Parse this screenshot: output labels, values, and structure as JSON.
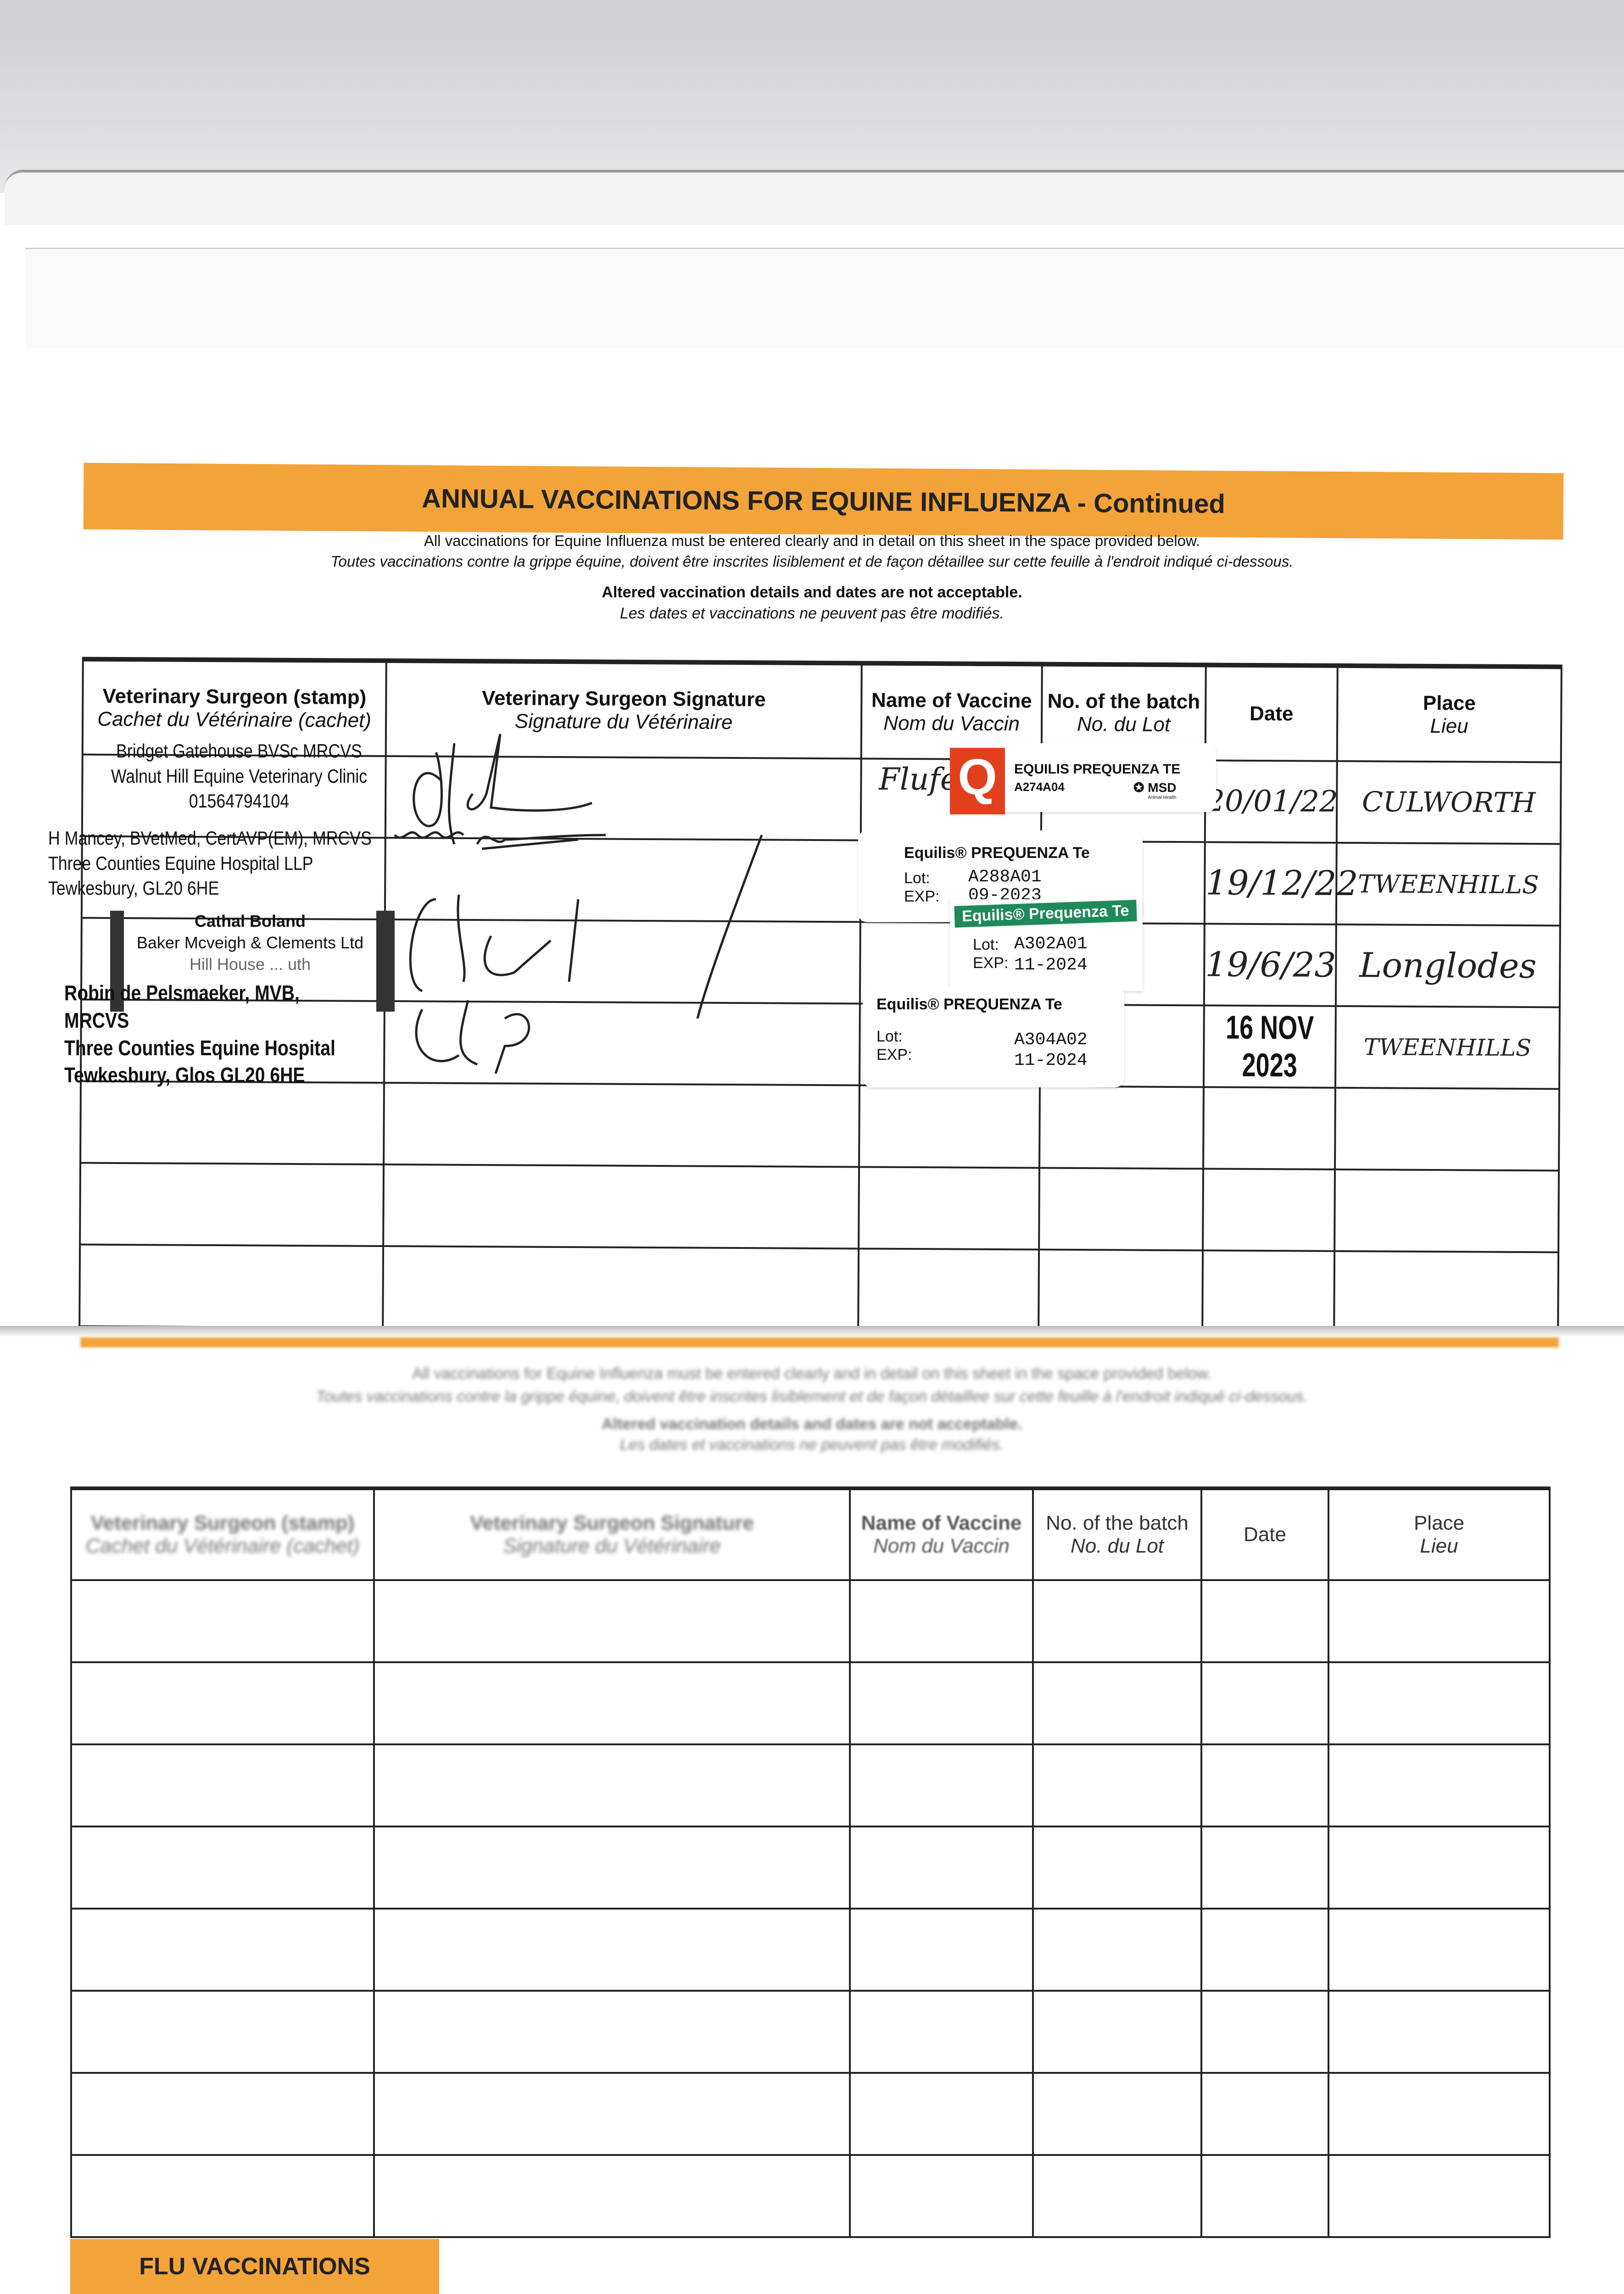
{
  "header": {
    "title": "ANNUAL VACCINATIONS FOR EQUINE INFLUENZA - Continued",
    "instruction_en": "All vaccinations for Equine Influenza must be entered clearly and in detail on this sheet in the space provided below.",
    "instruction_fr": "Toutes vaccinations contre la grippe équine, doivent être inscrites lisiblement et de façon détaillee sur cette feuille à l'endroit indiqué ci-dessous.",
    "warning_en": "Altered vaccination details and dates are not acceptable.",
    "warning_fr": "Les dates et vaccinations ne peuvent pas être modifiés."
  },
  "columns": [
    {
      "en": "Veterinary Surgeon (stamp)",
      "fr": "Cachet du Vétérinaire (cachet)"
    },
    {
      "en": "Veterinary Surgeon Signature",
      "fr": "Signature du Vétérinaire"
    },
    {
      "en": "Name of Vaccine",
      "fr": "Nom du Vaccin"
    },
    {
      "en": "No. of the batch",
      "fr": "No. du Lot"
    },
    {
      "en": "Date",
      "fr": ""
    },
    {
      "en": "Place",
      "fr": "Lieu"
    }
  ],
  "rows": [
    {
      "stamp": [
        "Bridget Gatehouse BVSc MRCVS",
        "Walnut Hill Equine Veterinary Clinic",
        "01564794104"
      ],
      "vaccine_handwritten": "Flufe",
      "label": {
        "brand": "Q",
        "name": "EQUILIS PREQUENZA TE",
        "lot": "A274A04",
        "maker": "MSD",
        "maker_sub": "Animal Health"
      },
      "date": "20/01/22",
      "place": "CULWORTH"
    },
    {
      "stamp": [
        "H Mancey, BVetMed, CertAVP(EM), MRCVS",
        "Three Counties Equine Hospital LLP",
        "Tewkesbury, GL20 6HE"
      ],
      "label": {
        "name": "Equilis® PREQUENZA Te",
        "lot_label": "Lot:",
        "lot": "A288A01",
        "exp_label": "EXP:",
        "exp": "09-2023"
      },
      "date": "19/12/22",
      "place": "TWEENHILLS"
    },
    {
      "stamp": [
        "Cathal Boland",
        "Baker Mcveigh & Clements Ltd",
        "Hill House ... uth"
      ],
      "label": {
        "name": "Equilis® Prequenza Te",
        "lot_label": "Lot:",
        "lot": "A302A01",
        "exp_label": "EXP:",
        "exp": "11-2024"
      },
      "date": "19/6/23",
      "place": "Longlodes"
    },
    {
      "stamp": [
        "Robin de Pelsmaeker, MVB, MRCVS",
        "Three Counties Equine Hospital",
        "Tewkesbury, Glos GL20 6HE"
      ],
      "label": {
        "name": "Equilis® PREQUENZA Te",
        "lot_label": "Lot:",
        "lot": "A304A02",
        "exp_label": "EXP:",
        "exp": "11-2024"
      },
      "date": "16 NOV 2023",
      "place": "TWEENHILLS"
    }
  ],
  "footer": {
    "label": "FLU VACCINATIONS"
  },
  "colors": {
    "banner": "#f2a33a",
    "label_red": "#e2401c",
    "label_green": "#1e8a5a"
  }
}
